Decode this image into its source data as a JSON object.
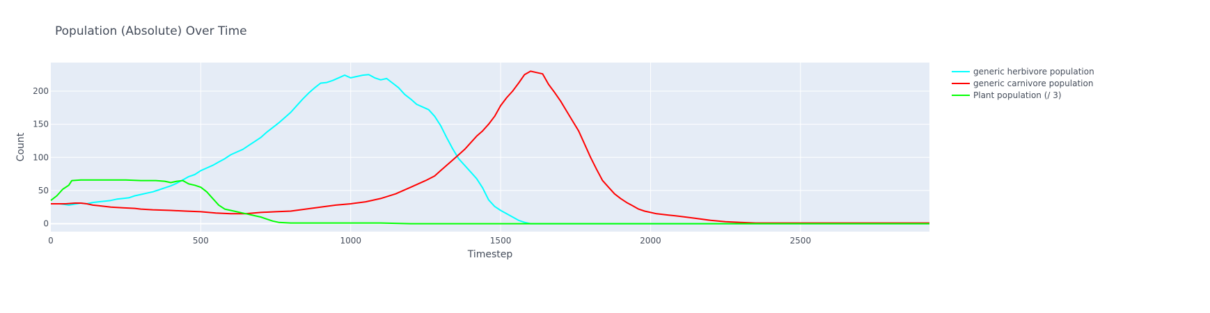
{
  "chart_data": {
    "type": "line",
    "title": "Population (Absolute) Over Time",
    "xlabel": "Timestep",
    "ylabel": "Count",
    "xlim": [
      0,
      2930
    ],
    "ylim": [
      -12,
      243
    ],
    "x_ticks": [
      0,
      500,
      1000,
      1500,
      2000,
      2500
    ],
    "y_ticks": [
      0,
      50,
      100,
      150,
      200
    ],
    "grid": true,
    "legend_position": "top-right outside",
    "series": [
      {
        "name": "generic herbivore population",
        "color": "#00ffff",
        "x": [
          0,
          30,
          60,
          75,
          100,
          120,
          140,
          160,
          180,
          200,
          220,
          240,
          260,
          280,
          300,
          320,
          340,
          360,
          380,
          400,
          420,
          440,
          460,
          480,
          500,
          520,
          540,
          560,
          580,
          600,
          620,
          640,
          660,
          680,
          700,
          720,
          740,
          760,
          780,
          800,
          820,
          840,
          860,
          880,
          900,
          920,
          940,
          960,
          980,
          1000,
          1020,
          1040,
          1060,
          1080,
          1100,
          1120,
          1140,
          1160,
          1180,
          1200,
          1220,
          1240,
          1260,
          1280,
          1300,
          1320,
          1340,
          1360,
          1380,
          1400,
          1420,
          1440,
          1460,
          1480,
          1500,
          1520,
          1540,
          1560,
          1580,
          1600,
          1620,
          1650,
          1700,
          1800,
          2000,
          2500,
          2930
        ],
        "y": [
          30,
          30,
          28,
          29,
          31,
          30,
          32,
          33,
          34,
          35,
          37,
          38,
          39,
          42,
          44,
          46,
          48,
          51,
          54,
          57,
          61,
          66,
          71,
          74,
          80,
          84,
          88,
          93,
          98,
          104,
          108,
          112,
          118,
          124,
          130,
          138,
          145,
          152,
          160,
          168,
          178,
          188,
          197,
          205,
          212,
          213,
          216,
          220,
          224,
          220,
          222,
          224,
          225,
          220,
          217,
          219,
          212,
          205,
          195,
          188,
          180,
          176,
          172,
          162,
          148,
          130,
          113,
          98,
          88,
          78,
          68,
          54,
          36,
          26,
          20,
          15,
          10,
          5,
          2,
          0,
          0,
          0,
          0,
          0,
          0,
          0,
          0
        ]
      },
      {
        "name": "generic carnivore population",
        "color": "#ff0000",
        "x": [
          0,
          50,
          80,
          100,
          120,
          140,
          160,
          180,
          200,
          240,
          280,
          300,
          340,
          400,
          450,
          500,
          550,
          600,
          650,
          700,
          750,
          800,
          850,
          900,
          950,
          1000,
          1050,
          1100,
          1150,
          1200,
          1250,
          1280,
          1300,
          1320,
          1340,
          1360,
          1380,
          1400,
          1420,
          1440,
          1460,
          1480,
          1500,
          1520,
          1540,
          1560,
          1580,
          1600,
          1620,
          1640,
          1660,
          1680,
          1700,
          1720,
          1740,
          1760,
          1780,
          1800,
          1820,
          1840,
          1860,
          1880,
          1900,
          1920,
          1940,
          1960,
          1980,
          2000,
          2020,
          2040,
          2060,
          2080,
          2100,
          2150,
          2200,
          2250,
          2300,
          2350,
          2400,
          2500,
          2600,
          2700,
          2800,
          2930
        ],
        "y": [
          30,
          30,
          31,
          31,
          30,
          28,
          27,
          26,
          25,
          24,
          23,
          22,
          21,
          20,
          19,
          18,
          16,
          15,
          15,
          17,
          18,
          19,
          22,
          25,
          28,
          30,
          33,
          38,
          45,
          55,
          65,
          72,
          80,
          88,
          96,
          104,
          112,
          122,
          132,
          140,
          150,
          162,
          178,
          190,
          200,
          212,
          225,
          230,
          228,
          226,
          210,
          198,
          185,
          170,
          155,
          140,
          120,
          100,
          82,
          65,
          55,
          45,
          38,
          32,
          27,
          22,
          19,
          17,
          15,
          14,
          13,
          12,
          11,
          8,
          5,
          3,
          2,
          1,
          1,
          1,
          1,
          1,
          1,
          1
        ]
      },
      {
        "name": "Plant population (/ 3)",
        "color": "#00ff00",
        "x": [
          0,
          20,
          40,
          60,
          70,
          100,
          150,
          200,
          250,
          300,
          350,
          380,
          400,
          420,
          440,
          460,
          480,
          500,
          520,
          540,
          560,
          580,
          600,
          620,
          640,
          660,
          680,
          700,
          720,
          740,
          760,
          800,
          900,
          1000,
          1100,
          1200,
          1500,
          2000,
          2500,
          2930
        ],
        "y": [
          35,
          42,
          52,
          58,
          65,
          66,
          66,
          66,
          66,
          65,
          65,
          64,
          62,
          64,
          65,
          60,
          58,
          55,
          48,
          38,
          28,
          22,
          20,
          18,
          16,
          14,
          12,
          10,
          7,
          4,
          2,
          1,
          1,
          1,
          1,
          0,
          0,
          0,
          0,
          0
        ]
      }
    ]
  }
}
